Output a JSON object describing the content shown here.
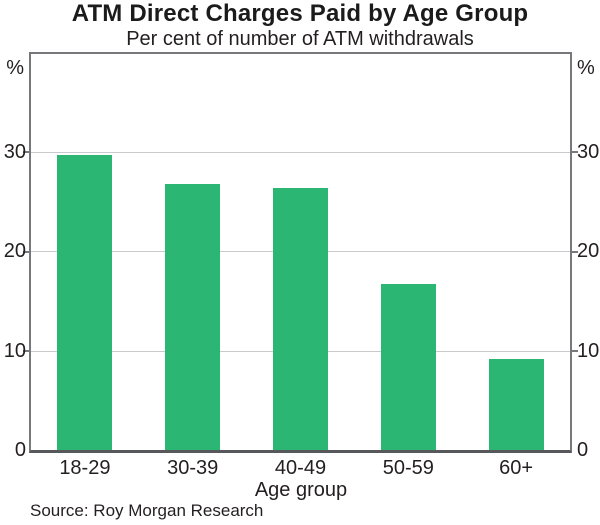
{
  "chart_data": {
    "type": "bar",
    "title": "ATM Direct Charges Paid by Age Group",
    "subtitle": "Per cent of number of ATM withdrawals",
    "unit_left": "%",
    "unit_right": "%",
    "categories": [
      "18-29",
      "30-39",
      "40-49",
      "50-59",
      "60+"
    ],
    "values": [
      29.6,
      26.7,
      26.3,
      16.7,
      9.1
    ],
    "xlabel": "Age group",
    "ylim": [
      0,
      40
    ],
    "yticks": [
      0,
      10,
      20,
      30
    ],
    "gridlines": [
      10,
      20,
      30
    ],
    "grid": true,
    "legend": "none",
    "source": "Source: Roy Morgan Research",
    "colors": {
      "bar": "#2bb673",
      "grid": "#c9cacb",
      "frame": "#77787b",
      "axis": "#57585b",
      "text": "#231f20"
    }
  }
}
